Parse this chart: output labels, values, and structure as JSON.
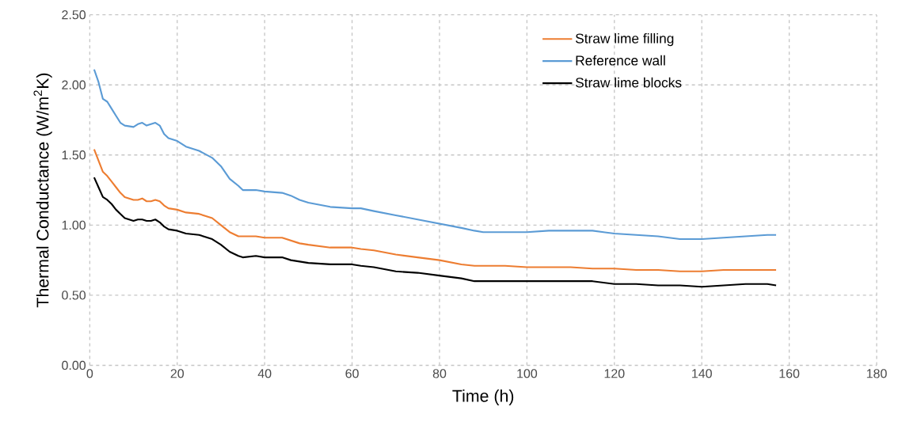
{
  "chart_data": {
    "type": "line",
    "xlabel": "Time (h)",
    "ylabel": "Thermal Conductance (W/m$^{2}$K)",
    "x": [
      1,
      2,
      3,
      4,
      5,
      6,
      7,
      8,
      10,
      11,
      12,
      13,
      14,
      15,
      16,
      17,
      18,
      20,
      22,
      25,
      28,
      30,
      32,
      34,
      35,
      38,
      40,
      44,
      46,
      48,
      50,
      55,
      60,
      62,
      65,
      70,
      75,
      80,
      85,
      88,
      90,
      95,
      100,
      105,
      110,
      115,
      120,
      125,
      130,
      135,
      140,
      145,
      150,
      155,
      157
    ],
    "series": [
      {
        "name": "Straw lime filling",
        "color": "#ed7d31",
        "values": [
          1.54,
          1.46,
          1.38,
          1.35,
          1.31,
          1.27,
          1.23,
          1.2,
          1.18,
          1.18,
          1.19,
          1.17,
          1.17,
          1.18,
          1.17,
          1.14,
          1.12,
          1.11,
          1.09,
          1.08,
          1.05,
          1.0,
          0.95,
          0.92,
          0.92,
          0.92,
          0.91,
          0.91,
          0.89,
          0.87,
          0.86,
          0.84,
          0.84,
          0.83,
          0.82,
          0.79,
          0.77,
          0.75,
          0.72,
          0.71,
          0.71,
          0.71,
          0.7,
          0.7,
          0.7,
          0.69,
          0.69,
          0.68,
          0.68,
          0.67,
          0.67,
          0.68,
          0.68,
          0.68,
          0.68
        ]
      },
      {
        "name": "Reference wall",
        "color": "#5b9bd5",
        "values": [
          2.11,
          2.02,
          1.9,
          1.88,
          1.83,
          1.78,
          1.73,
          1.71,
          1.7,
          1.72,
          1.73,
          1.71,
          1.72,
          1.73,
          1.71,
          1.65,
          1.62,
          1.6,
          1.56,
          1.53,
          1.48,
          1.42,
          1.33,
          1.28,
          1.25,
          1.25,
          1.24,
          1.23,
          1.21,
          1.18,
          1.16,
          1.13,
          1.12,
          1.12,
          1.1,
          1.07,
          1.04,
          1.01,
          0.98,
          0.96,
          0.95,
          0.95,
          0.95,
          0.96,
          0.96,
          0.96,
          0.94,
          0.93,
          0.92,
          0.9,
          0.9,
          0.91,
          0.92,
          0.93,
          0.93
        ]
      },
      {
        "name": "Straw lime blocks",
        "color": "#000000",
        "values": [
          1.34,
          1.27,
          1.2,
          1.18,
          1.15,
          1.11,
          1.08,
          1.05,
          1.03,
          1.04,
          1.04,
          1.03,
          1.03,
          1.04,
          1.02,
          0.99,
          0.97,
          0.96,
          0.94,
          0.93,
          0.9,
          0.86,
          0.81,
          0.78,
          0.77,
          0.78,
          0.77,
          0.77,
          0.75,
          0.74,
          0.73,
          0.72,
          0.72,
          0.71,
          0.7,
          0.67,
          0.66,
          0.64,
          0.62,
          0.6,
          0.6,
          0.6,
          0.6,
          0.6,
          0.6,
          0.6,
          0.58,
          0.58,
          0.57,
          0.57,
          0.56,
          0.57,
          0.58,
          0.58,
          0.57
        ]
      }
    ],
    "xlim": [
      0,
      180
    ],
    "ylim": [
      0,
      2.5
    ],
    "xticks": [
      0,
      20,
      40,
      60,
      80,
      100,
      120,
      140,
      160,
      180
    ],
    "yticks": [
      {
        "value": 0,
        "label": "0.00"
      },
      {
        "value": 0.5,
        "label": "0.50"
      },
      {
        "value": 1,
        "label": "1.00"
      },
      {
        "value": 1.5,
        "label": "1.50"
      },
      {
        "value": 2,
        "label": "2.00"
      },
      {
        "value": 2.5,
        "label": "2.50"
      }
    ],
    "grid": true,
    "legend": "top right",
    "marker": "none",
    "line_style": "solid"
  }
}
